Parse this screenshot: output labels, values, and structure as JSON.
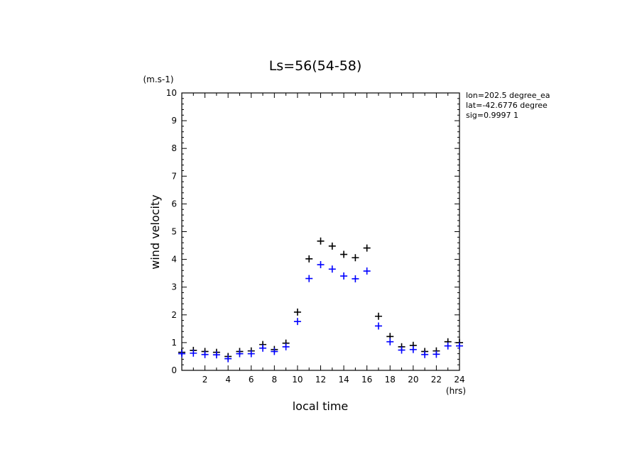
{
  "chart_data": {
    "type": "scatter",
    "title": "Ls=56(54-58)",
    "xlabel": "local time",
    "ylabel": "wind velocity",
    "x_unit": "(hrs)",
    "y_unit": "(m.s-1)",
    "xlim": [
      0,
      24
    ],
    "ylim": [
      0,
      10
    ],
    "x_ticks": [
      2,
      4,
      6,
      8,
      10,
      12,
      14,
      16,
      18,
      20,
      22,
      24
    ],
    "y_ticks": [
      0,
      1,
      2,
      3,
      4,
      5,
      6,
      7,
      8,
      9,
      10
    ],
    "info_lines": [
      "lon=202.5 degree_ea",
      "lat=-42.6776 degree",
      "sig=0.9997 1"
    ],
    "x": [
      0,
      1,
      2,
      3,
      4,
      5,
      6,
      7,
      8,
      9,
      10,
      11,
      12,
      13,
      14,
      15,
      16,
      17,
      18,
      19,
      20,
      21,
      22,
      23,
      24
    ],
    "series": [
      {
        "name": "black",
        "color": "#000000",
        "values": [
          0.65,
          0.72,
          0.68,
          0.65,
          0.5,
          0.68,
          0.7,
          0.93,
          0.75,
          0.98,
          2.1,
          4.02,
          4.66,
          4.48,
          4.18,
          4.06,
          4.41,
          1.95,
          1.22,
          0.85,
          0.9,
          0.68,
          0.7,
          1.03,
          1.0
        ]
      },
      {
        "name": "blue",
        "color": "#0000ff",
        "values": [
          0.6,
          0.62,
          0.57,
          0.56,
          0.42,
          0.6,
          0.6,
          0.8,
          0.68,
          0.85,
          1.76,
          3.31,
          3.81,
          3.65,
          3.4,
          3.3,
          3.58,
          1.6,
          1.03,
          0.73,
          0.75,
          0.57,
          0.58,
          0.88,
          0.88
        ]
      }
    ]
  }
}
